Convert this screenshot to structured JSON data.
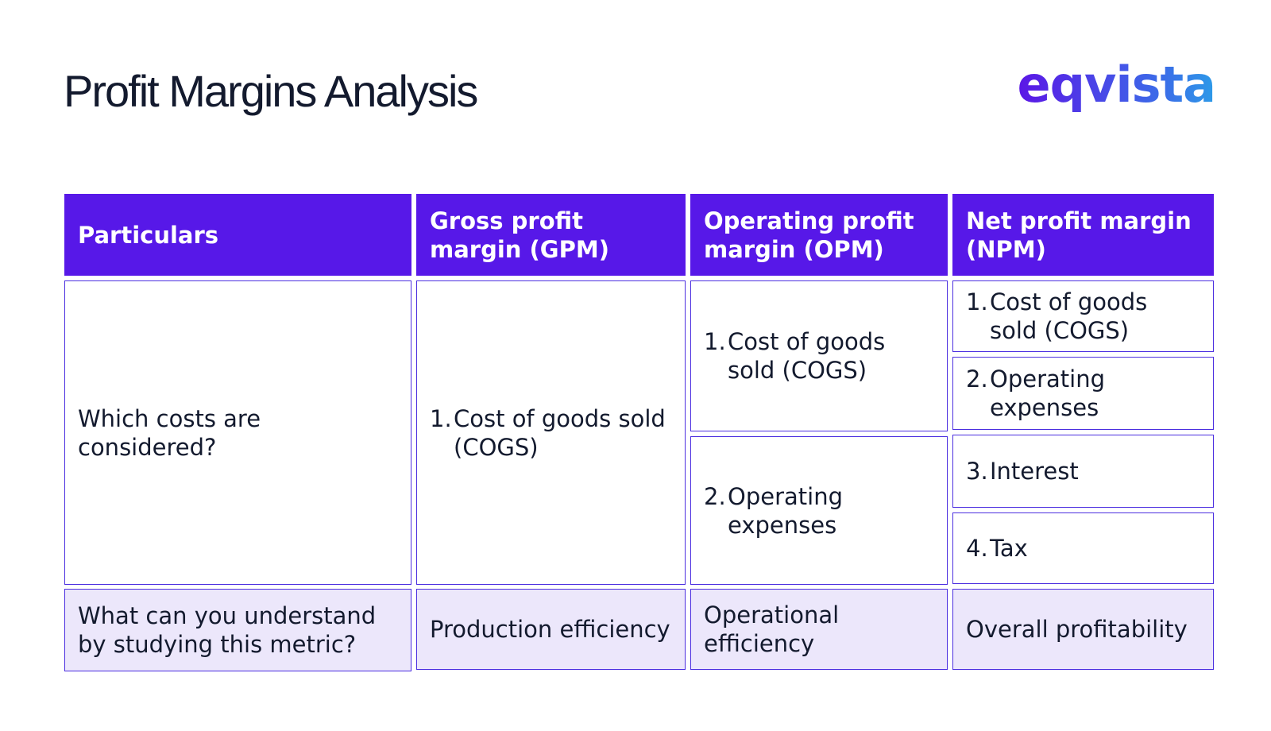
{
  "header": {
    "title": "Profit Margins Analysis",
    "logo": "eqvista"
  },
  "table": {
    "columns": [
      "Particulars",
      "Gross profit margin (GPM)",
      "Operating profit margin (OPM)",
      "Net profit margin (NPM)"
    ],
    "rows": [
      {
        "label": "Which costs are considered?",
        "gpm": [
          {
            "number": "1.",
            "text": "Cost of goods sold (COGS)"
          }
        ],
        "opm": [
          {
            "number": "1.",
            "text": "Cost of goods sold (COGS)"
          },
          {
            "number": "2.",
            "text": "Operating expenses"
          }
        ],
        "npm": [
          {
            "number": "1.",
            "text": "Cost of goods sold (COGS)"
          },
          {
            "number": "2.",
            "text": "Operating expenses"
          },
          {
            "number": "3.",
            "text": "Interest"
          },
          {
            "number": "4.",
            "text": "Tax"
          }
        ]
      },
      {
        "label": "What can you understand by studying this metric?",
        "gpm": "Production efficiency",
        "opm": "Operational efficiency",
        "npm": "Overall profitability"
      }
    ]
  }
}
